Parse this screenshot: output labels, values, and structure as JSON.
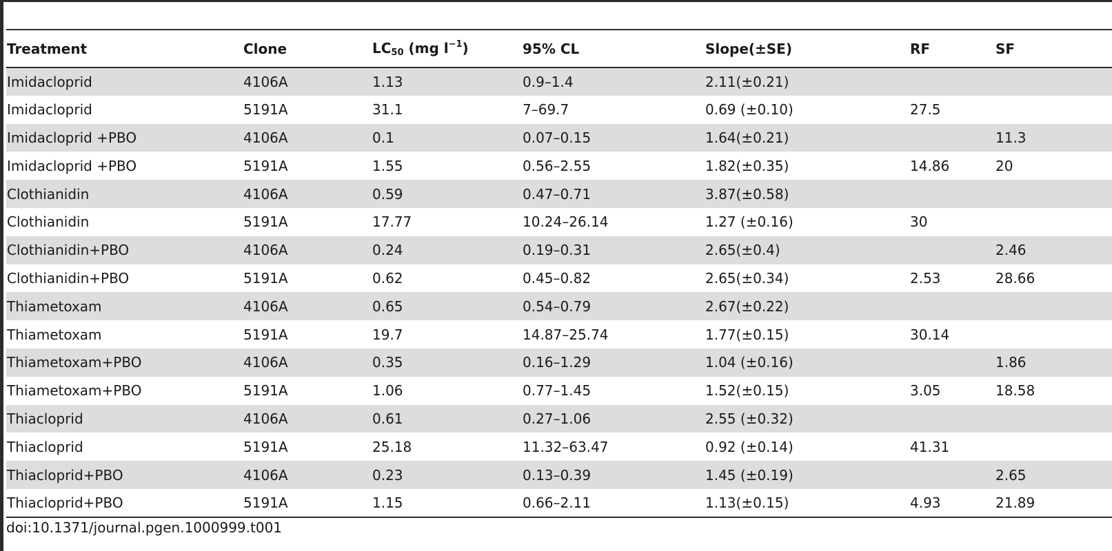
{
  "table": {
    "headers": {
      "treatment": "Treatment",
      "clone": "Clone",
      "lc_base": "LC",
      "lc_sub": "50",
      "lc_unit": " (mg l",
      "lc_sup": "−1",
      "lc_close": ")",
      "cl": "95% CL",
      "slope": "Slope(±SE)",
      "rf": "RF",
      "sf": "SF"
    },
    "rows": [
      {
        "treatment": "Imidacloprid",
        "clone": "4106A",
        "lc50": "1.13",
        "cl": "0.9–1.4",
        "slope": "2.11(±0.21)",
        "rf": "",
        "sf": ""
      },
      {
        "treatment": "Imidacloprid",
        "clone": "5191A",
        "lc50": "31.1",
        "cl": "7–69.7",
        "slope": "0.69 (±0.10)",
        "rf": "27.5",
        "sf": ""
      },
      {
        "treatment": "Imidacloprid +PBO",
        "clone": "4106A",
        "lc50": "0.1",
        "cl": "0.07–0.15",
        "slope": "1.64(±0.21)",
        "rf": "",
        "sf": "11.3"
      },
      {
        "treatment": "Imidacloprid +PBO",
        "clone": "5191A",
        "lc50": "1.55",
        "cl": "0.56–2.55",
        "slope": "1.82(±0.35)",
        "rf": "14.86",
        "sf": "20"
      },
      {
        "treatment": "Clothianidin",
        "clone": "4106A",
        "lc50": "0.59",
        "cl": "0.47–0.71",
        "slope": "3.87(±0.58)",
        "rf": "",
        "sf": ""
      },
      {
        "treatment": "Clothianidin",
        "clone": "5191A",
        "lc50": "17.77",
        "cl": "10.24–26.14",
        "slope": "1.27 (±0.16)",
        "rf": "30",
        "sf": ""
      },
      {
        "treatment": "Clothianidin+PBO",
        "clone": "4106A",
        "lc50": "0.24",
        "cl": "0.19–0.31",
        "slope": "2.65(±0.4)",
        "rf": "",
        "sf": "2.46"
      },
      {
        "treatment": "Clothianidin+PBO",
        "clone": "5191A",
        "lc50": "0.62",
        "cl": "0.45–0.82",
        "slope": "2.65(±0.34)",
        "rf": "2.53",
        "sf": "28.66"
      },
      {
        "treatment": "Thiametoxam",
        "clone": "4106A",
        "lc50": "0.65",
        "cl": "0.54–0.79",
        "slope": "2.67(±0.22)",
        "rf": "",
        "sf": ""
      },
      {
        "treatment": "Thiametoxam",
        "clone": "5191A",
        "lc50": "19.7",
        "cl": "14.87–25.74",
        "slope": "1.77(±0.15)",
        "rf": "30.14",
        "sf": ""
      },
      {
        "treatment": "Thiametoxam+PBO",
        "clone": "4106A",
        "lc50": "0.35",
        "cl": "0.16–1.29",
        "slope": "1.04 (±0.16)",
        "rf": "",
        "sf": "1.86"
      },
      {
        "treatment": "Thiametoxam+PBO",
        "clone": "5191A",
        "lc50": "1.06",
        "cl": "0.77–1.45",
        "slope": "1.52(±0.15)",
        "rf": "3.05",
        "sf": "18.58"
      },
      {
        "treatment": "Thiacloprid",
        "clone": "4106A",
        "lc50": "0.61",
        "cl": "0.27–1.06",
        "slope": "2.55 (±0.32)",
        "rf": "",
        "sf": ""
      },
      {
        "treatment": "Thiacloprid",
        "clone": "5191A",
        "lc50": "25.18",
        "cl": "11.32–63.47",
        "slope": "0.92 (±0.14)",
        "rf": "41.31",
        "sf": ""
      },
      {
        "treatment": "Thiacloprid+PBO",
        "clone": "4106A",
        "lc50": "0.23",
        "cl": "0.13–0.39",
        "slope": "1.45 (±0.19)",
        "rf": "",
        "sf": "2.65"
      },
      {
        "treatment": "Thiacloprid+PBO",
        "clone": "5191A",
        "lc50": "1.15",
        "cl": "0.66–2.11",
        "slope": "1.13(±0.15)",
        "rf": "4.93",
        "sf": "21.89"
      }
    ]
  },
  "doi": "doi:10.1371/journal.pgen.1000999.t001"
}
